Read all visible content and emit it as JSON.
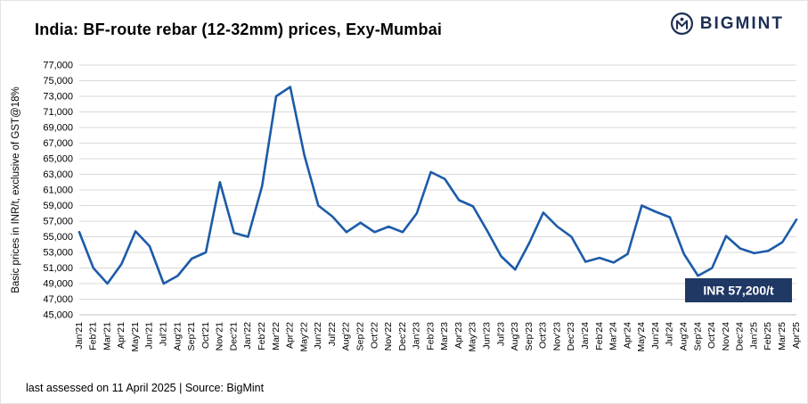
{
  "header": {
    "title": "India: BF-route rebar (12-32mm) prices, Exy-Mumbai"
  },
  "logo": {
    "text": "BIGMINT",
    "color": "#1e2f55"
  },
  "footer": {
    "text": "last assessed on 11 April 2025 | Source: BigMint"
  },
  "chart_data": {
    "type": "line",
    "title": "India: BF-route rebar (12-32mm) prices, Exy-Mumbai",
    "ylabel": "Basic prices in INR/t, exclusive of GST@18%",
    "xlabel": "",
    "ylim": [
      45000,
      77000
    ],
    "ytick_step": 2000,
    "grid": "horizontal",
    "legend": "none",
    "line_color": "#1c5ba8",
    "categories": [
      "Jan'21",
      "Feb'21",
      "Mar'21",
      "Apr'21",
      "May'21",
      "Jun'21",
      "Jul'21",
      "Aug'21",
      "Sep'21",
      "Oct'21",
      "Nov'21",
      "Dec'21",
      "Jan'22",
      "Feb'22",
      "Mar'22",
      "Apr'22",
      "May'22",
      "Jun'22",
      "Jul'22",
      "Aug'22",
      "Sep'22",
      "Oct'22",
      "Nov'22",
      "Dec'22",
      "Jan'23",
      "Feb'23",
      "Mar'23",
      "Apr'23",
      "May'23",
      "Jun'23",
      "Jul'23",
      "Aug'23",
      "Sep'23",
      "Oct'23",
      "Nov'23",
      "Dec'23",
      "Jan'24",
      "Feb'24",
      "Mar'24",
      "Apr'24",
      "May'24",
      "Jun'24",
      "Jul'24",
      "Aug'24",
      "Sep'24",
      "Oct'24",
      "Nov'24",
      "Dec'24",
      "Jan'25",
      "Feb'25",
      "Mar'25",
      "Apr'25"
    ],
    "values": [
      55600,
      51000,
      49000,
      51500,
      55700,
      53800,
      49000,
      50000,
      52200,
      53000,
      62000,
      55500,
      55000,
      61500,
      73000,
      74200,
      65500,
      59000,
      57600,
      55600,
      56800,
      55600,
      56300,
      55600,
      58000,
      63300,
      62400,
      59700,
      58900,
      55800,
      52500,
      50800,
      54200,
      58100,
      56300,
      55000,
      51800,
      52300,
      51700,
      52800,
      59000,
      58200,
      57500,
      52800,
      50000,
      51000,
      55100,
      53500,
      52900,
      53200,
      54300,
      57200
    ],
    "annotation": {
      "label": "INR 57,200/t",
      "value": 57200,
      "bg_color": "#1f3864",
      "text_color": "#ffffff"
    }
  }
}
